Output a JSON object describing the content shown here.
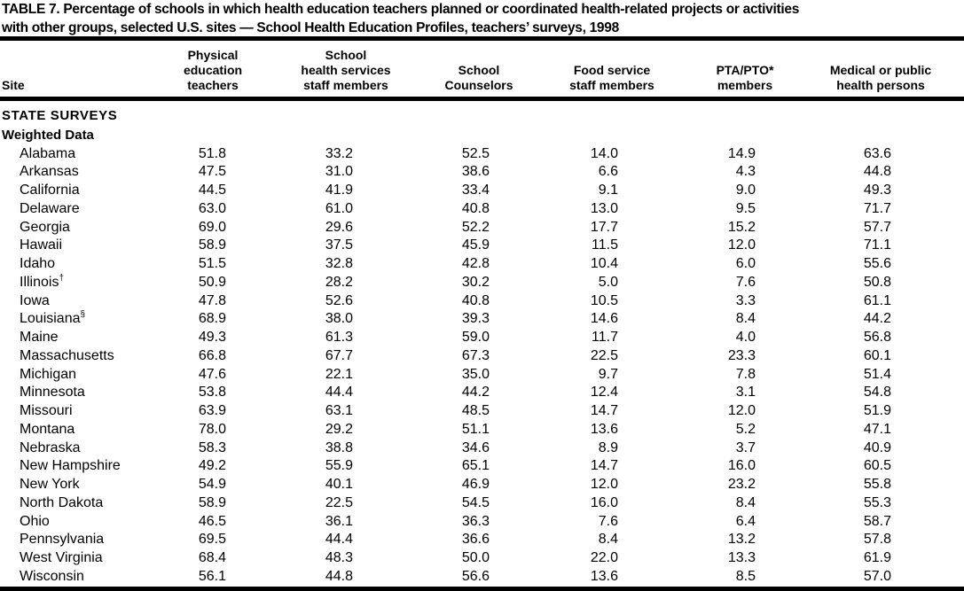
{
  "title": "TABLE 7. Percentage of schools in which health education teachers planned or coordinated health-related projects or activities\nwith other groups, selected U.S. sites — School Health Education Profiles, teachers’ surveys, 1998",
  "columns": {
    "site": "Site",
    "physical_education": "Physical\neducation\nteachers",
    "school_health_services": "School\nhealth services\nstaff members",
    "school_counselors": "School\nCounselors",
    "food_service": "Food service\nstaff members",
    "pta_pto": "PTA/PTO*\nmembers",
    "medical_public_health": "Medical or public\nhealth persons"
  },
  "section_header": "STATE SURVEYS",
  "subsection_header": "Weighted Data",
  "rows": [
    {
      "site": "Alabama",
      "footnote": "",
      "values": [
        "51.8",
        "33.2",
        "52.5",
        "14.0",
        "14.9",
        "63.6"
      ]
    },
    {
      "site": "Arkansas",
      "footnote": "",
      "values": [
        "47.5",
        "31.0",
        "38.6",
        "6.6",
        "4.3",
        "44.8"
      ]
    },
    {
      "site": "California",
      "footnote": "",
      "values": [
        "44.5",
        "41.9",
        "33.4",
        "9.1",
        "9.0",
        "49.3"
      ]
    },
    {
      "site": "Delaware",
      "footnote": "",
      "values": [
        "63.0",
        "61.0",
        "40.8",
        "13.0",
        "9.5",
        "71.7"
      ]
    },
    {
      "site": "Georgia",
      "footnote": "",
      "values": [
        "69.0",
        "29.6",
        "52.2",
        "17.7",
        "15.2",
        "57.7"
      ]
    },
    {
      "site": "Hawaii",
      "footnote": "",
      "values": [
        "58.9",
        "37.5",
        "45.9",
        "11.5",
        "12.0",
        "71.1"
      ]
    },
    {
      "site": "Idaho",
      "footnote": "",
      "values": [
        "51.5",
        "32.8",
        "42.8",
        "10.4",
        "6.0",
        "55.6"
      ]
    },
    {
      "site": "Illinois",
      "footnote": "†",
      "values": [
        "50.9",
        "28.2",
        "30.2",
        "5.0",
        "7.6",
        "50.8"
      ]
    },
    {
      "site": "Iowa",
      "footnote": "",
      "values": [
        "47.8",
        "52.6",
        "40.8",
        "10.5",
        "3.3",
        "61.1"
      ]
    },
    {
      "site": "Louisiana",
      "footnote": "§",
      "values": [
        "68.9",
        "38.0",
        "39.3",
        "14.6",
        "8.4",
        "44.2"
      ]
    },
    {
      "site": "Maine",
      "footnote": "",
      "values": [
        "49.3",
        "61.3",
        "59.0",
        "11.7",
        "4.0",
        "56.8"
      ]
    },
    {
      "site": "Massachusetts",
      "footnote": "",
      "values": [
        "66.8",
        "67.7",
        "67.3",
        "22.5",
        "23.3",
        "60.1"
      ]
    },
    {
      "site": "Michigan",
      "footnote": "",
      "values": [
        "47.6",
        "22.1",
        "35.0",
        "9.7",
        "7.8",
        "51.4"
      ]
    },
    {
      "site": "Minnesota",
      "footnote": "",
      "values": [
        "53.8",
        "44.4",
        "44.2",
        "12.4",
        "3.1",
        "54.8"
      ]
    },
    {
      "site": "Missouri",
      "footnote": "",
      "values": [
        "63.9",
        "63.1",
        "48.5",
        "14.7",
        "12.0",
        "51.9"
      ]
    },
    {
      "site": "Montana",
      "footnote": "",
      "values": [
        "78.0",
        "29.2",
        "51.1",
        "13.6",
        "5.2",
        "47.1"
      ]
    },
    {
      "site": "Nebraska",
      "footnote": "",
      "values": [
        "58.3",
        "38.8",
        "34.6",
        "8.9",
        "3.7",
        "40.9"
      ]
    },
    {
      "site": "New Hampshire",
      "footnote": "",
      "values": [
        "49.2",
        "55.9",
        "65.1",
        "14.7",
        "16.0",
        "60.5"
      ]
    },
    {
      "site": "New York",
      "footnote": "",
      "values": [
        "54.9",
        "40.1",
        "46.9",
        "12.0",
        "23.2",
        "55.8"
      ]
    },
    {
      "site": "North Dakota",
      "footnote": "",
      "values": [
        "58.9",
        "22.5",
        "54.5",
        "16.0",
        "8.4",
        "55.3"
      ]
    },
    {
      "site": "Ohio",
      "footnote": "",
      "values": [
        "46.5",
        "36.1",
        "36.3",
        "7.6",
        "6.4",
        "58.7"
      ]
    },
    {
      "site": "Pennsylvania",
      "footnote": "",
      "values": [
        "69.5",
        "44.4",
        "36.6",
        "8.4",
        "13.2",
        "57.8"
      ]
    },
    {
      "site": "West Virginia",
      "footnote": "",
      "values": [
        "68.4",
        "48.3",
        "50.0",
        "22.0",
        "13.3",
        "61.9"
      ]
    },
    {
      "site": "Wisconsin",
      "footnote": "",
      "values": [
        "56.1",
        "44.8",
        "56.6",
        "13.6",
        "8.5",
        "57.0"
      ]
    }
  ]
}
